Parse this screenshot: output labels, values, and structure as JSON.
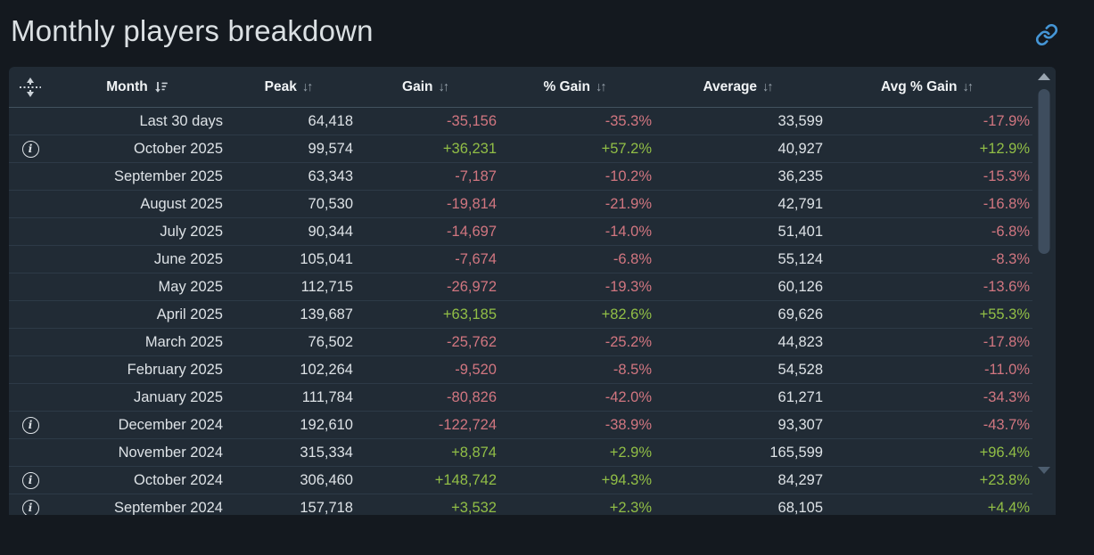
{
  "page": {
    "title": "Monthly players breakdown"
  },
  "colors": {
    "page_bg": "#14191f",
    "panel_bg": "#212b35",
    "accent": "#4596d6",
    "positive": "#91be46",
    "negative": "#d17680"
  },
  "table": {
    "columns": [
      {
        "label": "Month",
        "sort": "desc"
      },
      {
        "label": "Peak",
        "sort": "both"
      },
      {
        "label": "Gain",
        "sort": "both"
      },
      {
        "label": "% Gain",
        "sort": "both"
      },
      {
        "label": "Average",
        "sort": "both"
      },
      {
        "label": "Avg % Gain",
        "sort": "both"
      }
    ],
    "sort_both_glyph": "↓↑",
    "rows": [
      {
        "info": false,
        "month": "Last 30 days",
        "peak": "64,418",
        "gain": "-35,156",
        "gain_pct": "-35.3%",
        "avg": "33,599",
        "avg_gain_pct": "-17.9%"
      },
      {
        "info": true,
        "month": "October 2025",
        "peak": "99,574",
        "gain": "+36,231",
        "gain_pct": "+57.2%",
        "avg": "40,927",
        "avg_gain_pct": "+12.9%"
      },
      {
        "info": false,
        "month": "September 2025",
        "peak": "63,343",
        "gain": "-7,187",
        "gain_pct": "-10.2%",
        "avg": "36,235",
        "avg_gain_pct": "-15.3%"
      },
      {
        "info": false,
        "month": "August 2025",
        "peak": "70,530",
        "gain": "-19,814",
        "gain_pct": "-21.9%",
        "avg": "42,791",
        "avg_gain_pct": "-16.8%"
      },
      {
        "info": false,
        "month": "July 2025",
        "peak": "90,344",
        "gain": "-14,697",
        "gain_pct": "-14.0%",
        "avg": "51,401",
        "avg_gain_pct": "-6.8%"
      },
      {
        "info": false,
        "month": "June 2025",
        "peak": "105,041",
        "gain": "-7,674",
        "gain_pct": "-6.8%",
        "avg": "55,124",
        "avg_gain_pct": "-8.3%"
      },
      {
        "info": false,
        "month": "May 2025",
        "peak": "112,715",
        "gain": "-26,972",
        "gain_pct": "-19.3%",
        "avg": "60,126",
        "avg_gain_pct": "-13.6%"
      },
      {
        "info": false,
        "month": "April 2025",
        "peak": "139,687",
        "gain": "+63,185",
        "gain_pct": "+82.6%",
        "avg": "69,626",
        "avg_gain_pct": "+55.3%"
      },
      {
        "info": false,
        "month": "March 2025",
        "peak": "76,502",
        "gain": "-25,762",
        "gain_pct": "-25.2%",
        "avg": "44,823",
        "avg_gain_pct": "-17.8%"
      },
      {
        "info": false,
        "month": "February 2025",
        "peak": "102,264",
        "gain": "-9,520",
        "gain_pct": "-8.5%",
        "avg": "54,528",
        "avg_gain_pct": "-11.0%"
      },
      {
        "info": false,
        "month": "January 2025",
        "peak": "111,784",
        "gain": "-80,826",
        "gain_pct": "-42.0%",
        "avg": "61,271",
        "avg_gain_pct": "-34.3%"
      },
      {
        "info": true,
        "month": "December 2024",
        "peak": "192,610",
        "gain": "-122,724",
        "gain_pct": "-38.9%",
        "avg": "93,307",
        "avg_gain_pct": "-43.7%"
      },
      {
        "info": false,
        "month": "November 2024",
        "peak": "315,334",
        "gain": "+8,874",
        "gain_pct": "+2.9%",
        "avg": "165,599",
        "avg_gain_pct": "+96.4%"
      },
      {
        "info": true,
        "month": "October 2024",
        "peak": "306,460",
        "gain": "+148,742",
        "gain_pct": "+94.3%",
        "avg": "84,297",
        "avg_gain_pct": "+23.8%"
      },
      {
        "info": true,
        "month": "September 2024",
        "peak": "157,718",
        "gain": "+3,532",
        "gain_pct": "+2.3%",
        "avg": "68,105",
        "avg_gain_pct": "+4.4%"
      }
    ]
  }
}
